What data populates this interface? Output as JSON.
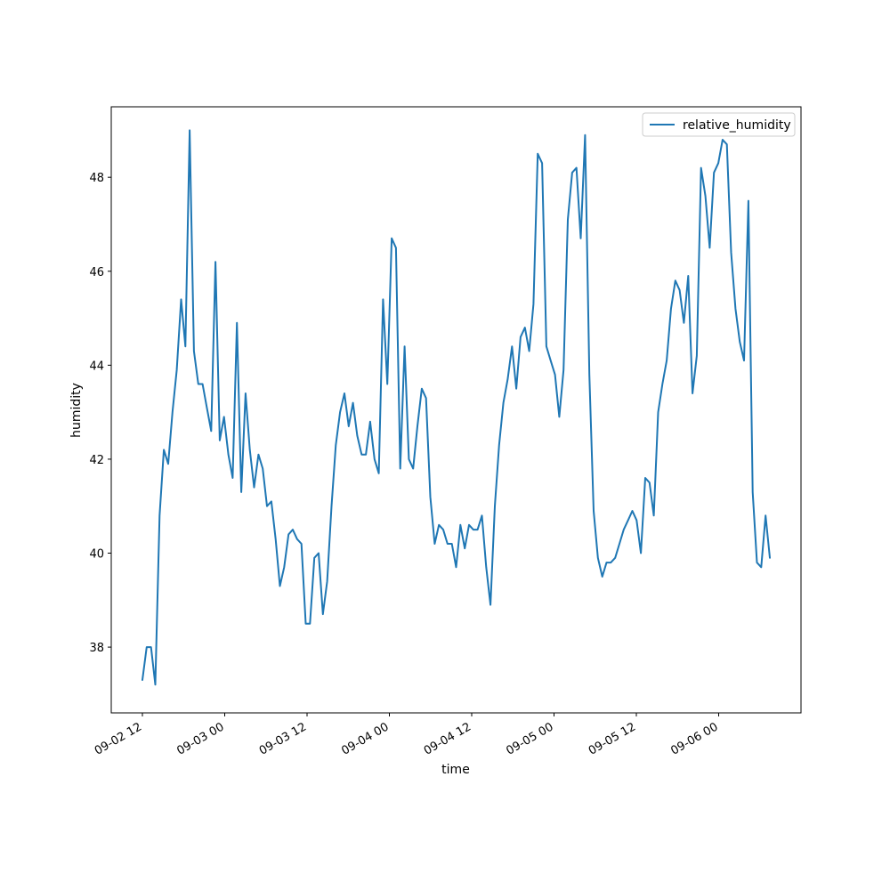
{
  "chart_data": {
    "type": "line",
    "title": "",
    "xlabel": "time",
    "ylabel": "humidity",
    "x_tick_labels": [
      "09-02 12",
      "09-03 00",
      "09-03 12",
      "09-04 00",
      "09-04 12",
      "09-05 00",
      "09-05 12",
      "09-06 00"
    ],
    "y_tick_labels": [
      "38",
      "40",
      "42",
      "44",
      "46",
      "48"
    ],
    "ylim": [
      36.6,
      49.5
    ],
    "grid": false,
    "legend_position": "top-right",
    "line_color": "#1f77b4",
    "series": [
      {
        "name": "relative_humidity",
        "values": [
          37.3,
          38.0,
          38.0,
          37.2,
          40.8,
          42.2,
          41.9,
          43.0,
          43.9,
          45.4,
          44.4,
          49.0,
          44.3,
          43.6,
          43.6,
          43.1,
          42.6,
          46.2,
          42.4,
          42.9,
          42.1,
          41.6,
          44.9,
          41.3,
          43.4,
          42.2,
          41.4,
          42.1,
          41.8,
          41.0,
          41.1,
          40.3,
          39.3,
          39.7,
          40.4,
          40.5,
          40.3,
          40.2,
          38.5,
          38.5,
          39.9,
          40.0,
          38.7,
          39.4,
          41.0,
          42.3,
          43.0,
          43.4,
          42.7,
          43.2,
          42.5,
          42.1,
          42.1,
          42.8,
          42.0,
          41.7,
          45.4,
          43.6,
          46.7,
          46.5,
          41.8,
          44.4,
          42.0,
          41.8,
          42.7,
          43.5,
          43.3,
          41.2,
          40.2,
          40.6,
          40.5,
          40.2,
          40.2,
          39.7,
          40.6,
          40.1,
          40.6,
          40.5,
          40.5,
          40.8,
          39.7,
          38.9,
          41.0,
          42.3,
          43.2,
          43.7,
          44.4,
          43.5,
          44.6,
          44.8,
          44.3,
          45.3,
          48.5,
          48.3,
          44.4,
          44.1,
          43.8,
          42.9,
          43.9,
          47.1,
          48.1,
          48.2,
          46.7,
          48.9,
          43.8,
          40.9,
          39.9,
          39.5,
          39.8,
          39.8,
          39.9,
          40.2,
          40.5,
          40.7,
          40.9,
          40.7,
          40.0,
          41.6,
          41.5,
          40.8,
          43.0,
          43.6,
          44.1,
          45.2,
          45.8,
          45.6,
          44.9,
          45.9,
          43.4,
          44.2,
          48.2,
          47.6,
          46.5,
          48.1,
          48.3,
          48.8,
          48.7,
          46.4,
          45.2,
          44.5,
          44.1,
          47.5,
          41.3,
          39.8,
          39.7,
          40.8,
          39.9
        ]
      }
    ]
  }
}
